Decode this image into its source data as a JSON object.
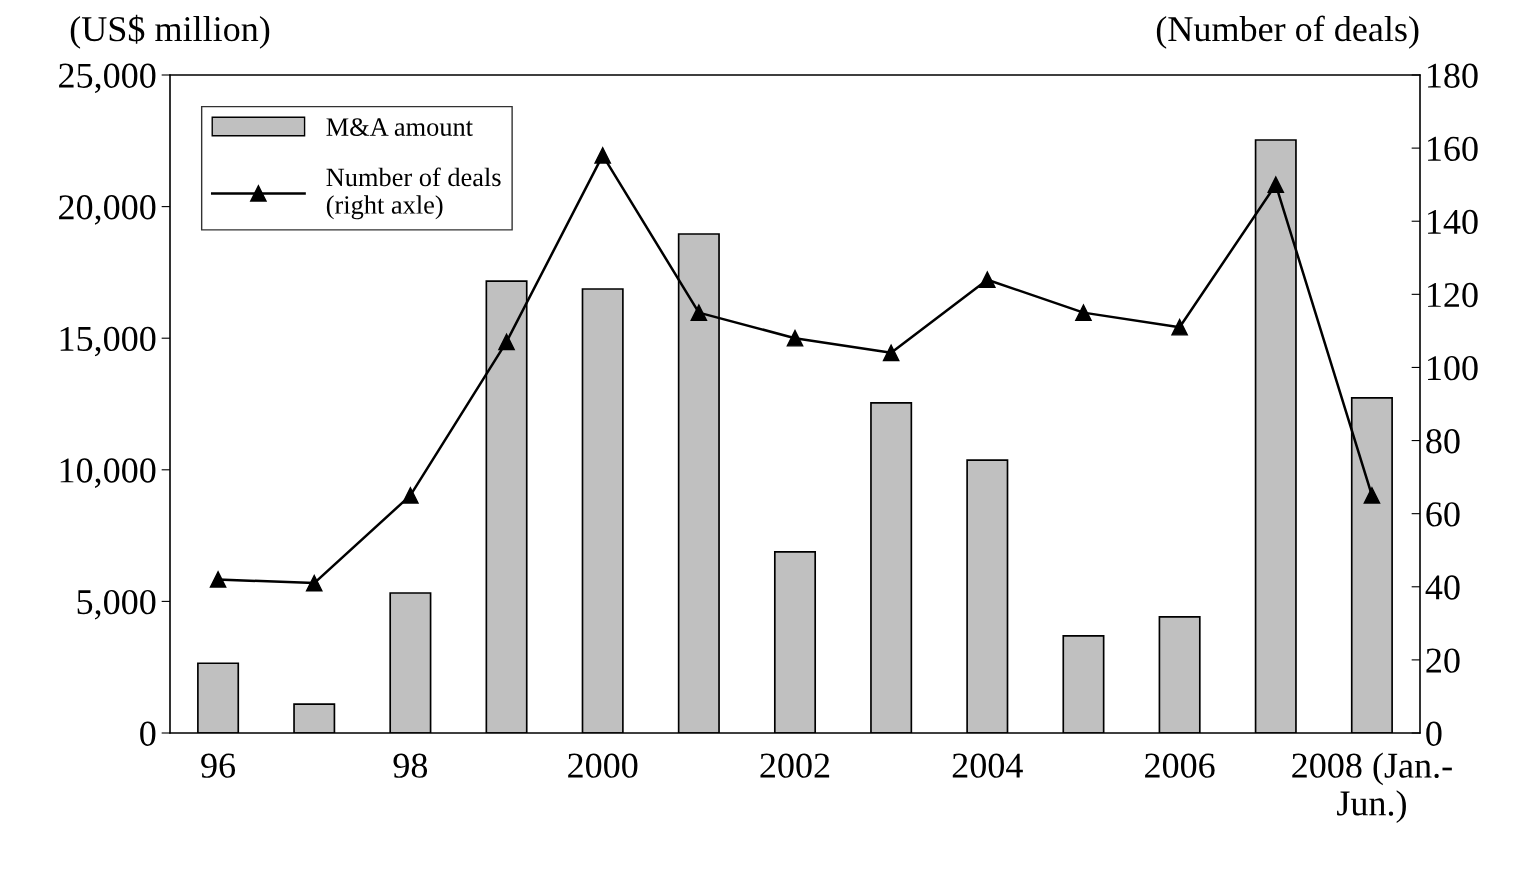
{
  "chart_data": {
    "type": "bar",
    "ylabel": "(US$ million)",
    "y2label": "(Number of deals)",
    "categories": [
      "96",
      null,
      "98",
      null,
      "2000",
      null,
      "2002",
      null,
      "2004",
      null,
      "2006",
      null,
      "2008 (Jan.-\nJun.)"
    ],
    "series": [
      {
        "name": "M&A amount",
        "color": "#c0c0c0",
        "values": [
          2650,
          1100,
          5320,
          17170,
          16870,
          18960,
          6880,
          12540,
          10370,
          3690,
          4410,
          22530,
          12730
        ]
      },
      {
        "name": "Number of deals\n(right axle)",
        "type": "line",
        "axis": "y2",
        "color": "#000000",
        "marker": "triangle",
        "values": [
          42,
          41,
          65,
          107,
          158,
          115,
          108,
          104,
          124,
          115,
          111,
          150,
          65
        ]
      }
    ],
    "ylim": [
      0,
      25000
    ],
    "yticks": [
      {
        "value": 0,
        "label": "0"
      },
      {
        "value": 5000,
        "label": "5,000"
      },
      {
        "value": 10000,
        "label": "10,000"
      },
      {
        "value": 15000,
        "label": "15,000"
      },
      {
        "value": 20000,
        "label": "20,000"
      },
      {
        "value": 25000,
        "label": "25,000"
      }
    ],
    "y2lim": [
      0,
      180
    ],
    "y2ticks": [
      0,
      20,
      40,
      60,
      80,
      100,
      120,
      140,
      160,
      180
    ],
    "grid": false,
    "legend": "top left"
  }
}
